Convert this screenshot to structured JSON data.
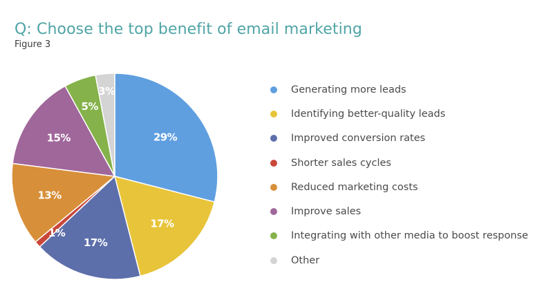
{
  "chart_data": {
    "type": "pie",
    "title": "Q: Choose the top benefit of email marketing",
    "subtitle": "Figure 3",
    "categories": [
      "Generating more leads",
      "Identifying better-quality leads",
      "Improved conversion rates",
      "Shorter sales cycles",
      "Reduced marketing costs",
      "Improve sales",
      "Integrating with other media to boost response",
      "Other"
    ],
    "values": [
      29,
      17,
      17,
      1,
      13,
      15,
      5,
      3
    ],
    "labels": [
      "29%",
      "17%",
      "17%",
      "1%",
      "13%",
      "15%",
      "5%",
      "3%"
    ],
    "colors": [
      "#5f9fe0",
      "#e8c43a",
      "#5d6faa",
      "#c9473a",
      "#d88f39",
      "#a0679b",
      "#85b24a",
      "#d4d4d4"
    ],
    "legend_position": "right"
  }
}
